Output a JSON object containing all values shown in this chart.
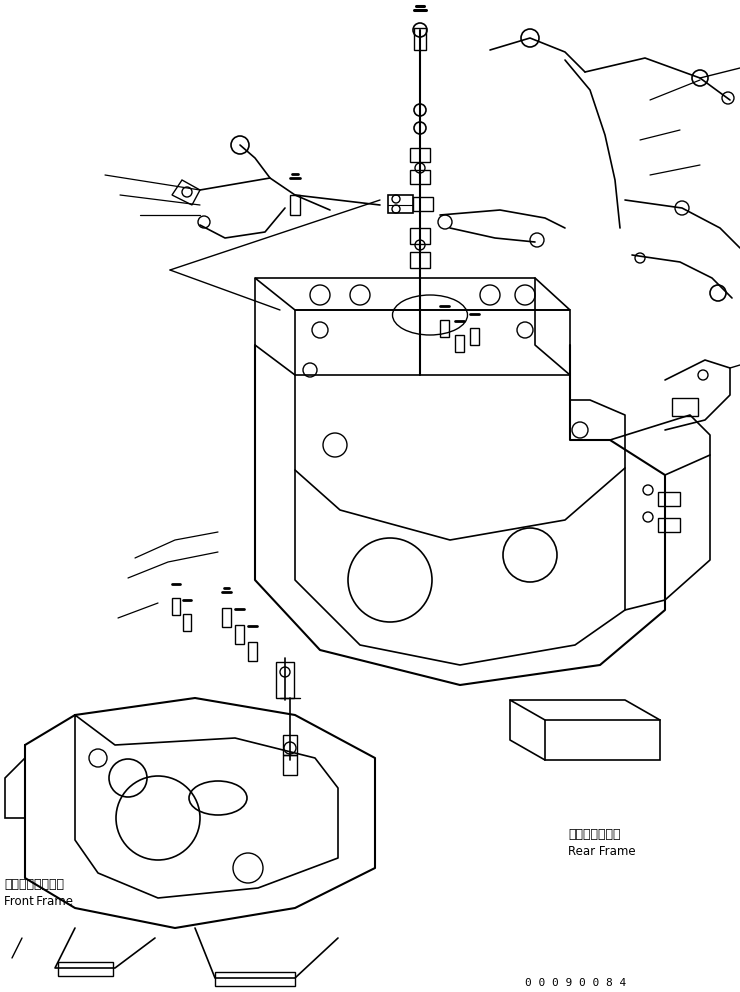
{
  "bg_color": "#ffffff",
  "line_color": "#000000",
  "label_rear_frame_jp": "リヤーフレーム",
  "label_rear_frame_en": "Rear Frame",
  "label_front_frame_jp": "フロントフレーム",
  "label_front_frame_en": "Front Frame",
  "part_number": "0 0 0 9 0 0 8 4",
  "lw": 1.0
}
